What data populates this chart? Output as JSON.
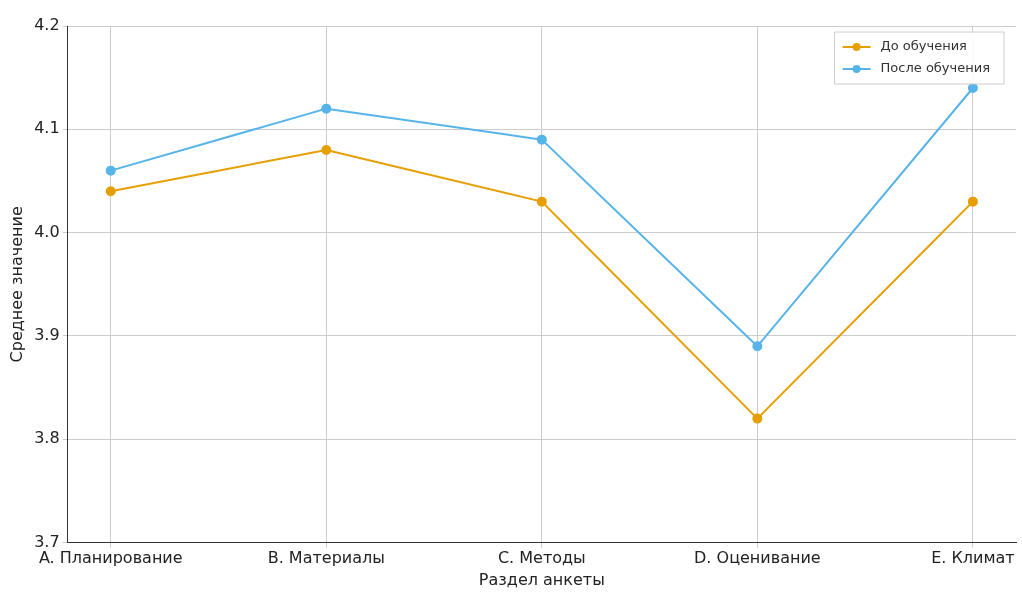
{
  "chart_data": {
    "type": "line",
    "xlabel": "Раздел анкеты",
    "ylabel": "Среднее значение",
    "categories": [
      "A. Планирование",
      "B. Материалы",
      "C. Методы",
      "D. Оценивание",
      "E. Климат"
    ],
    "series": [
      {
        "name": "До обучения",
        "color": "#e69f00",
        "values": [
          4.04,
          4.08,
          4.03,
          3.82,
          4.03
        ]
      },
      {
        "name": "После обучения",
        "color": "#56b4e9",
        "values": [
          4.06,
          4.12,
          4.09,
          3.89,
          4.14
        ]
      }
    ],
    "ylim": [
      3.7,
      4.2
    ],
    "yticks": [
      3.7,
      3.8,
      3.9,
      {
        "value": 4,
        "label": "4.0"
      },
      4.1,
      4.2
    ],
    "grid": true,
    "legend": "top right",
    "marker": "circle",
    "line_style": "solid"
  }
}
